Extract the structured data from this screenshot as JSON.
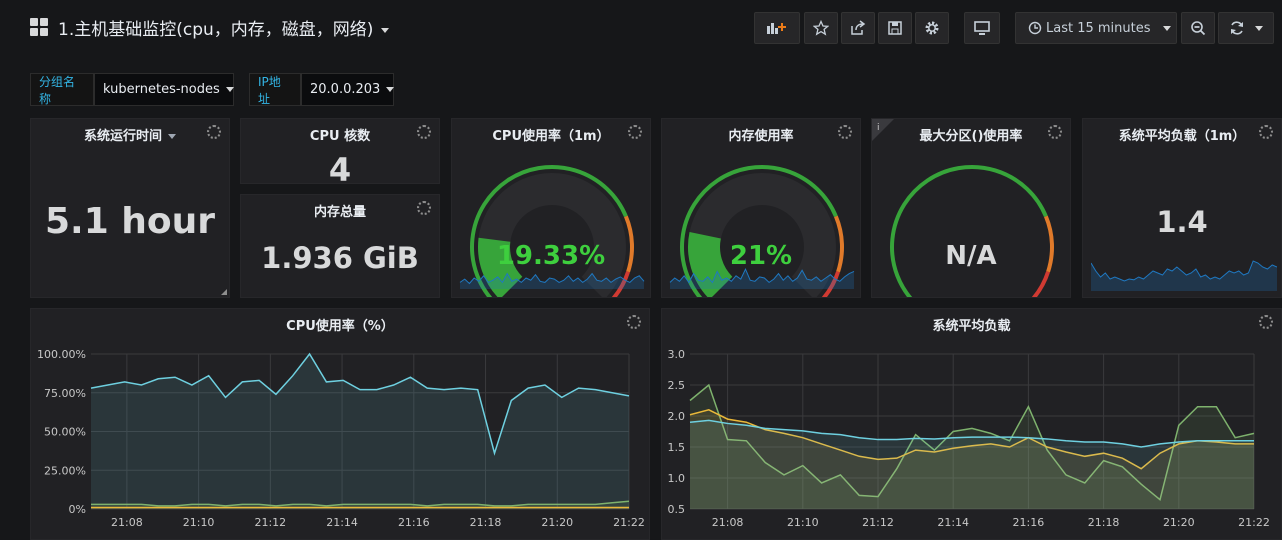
{
  "dashboard": {
    "title": "1.主机基础监控(cpu，内存，磁盘，网络)",
    "time_range": "Last 15 minutes"
  },
  "variables": [
    {
      "label": "分组名称",
      "value": "kubernetes-nodes"
    },
    {
      "label": "IP地址",
      "value": "20.0.0.203"
    }
  ],
  "panels": {
    "uptime": {
      "title": "系统运行时间",
      "value": "5.1 hour"
    },
    "cpu_cores": {
      "title": "CPU 核数",
      "value": "4"
    },
    "mem_total": {
      "title": "内存总量",
      "value": "1.936 GiB"
    },
    "cpu_usage": {
      "title": "CPU使用率（1m）",
      "value": "19.33%",
      "fraction": 0.1933
    },
    "mem_usage": {
      "title": "内存使用率",
      "value": "21%",
      "fraction": 0.21
    },
    "disk_usage": {
      "title": "最大分区()使用率",
      "value": "N/A"
    },
    "load_1m": {
      "title": "系统平均负载（1m）",
      "value": "1.4"
    },
    "cpu_chart": {
      "title": "CPU使用率（%）"
    },
    "load_chart": {
      "title": "系统平均负载"
    }
  },
  "colors": {
    "gauge_green": "#37a43a",
    "gauge_orange": "#e07a2a",
    "gauge_red": "#d03a32",
    "stat_value_green": "#3ecf3e",
    "series_blue": "#6ed0e0",
    "series_yellow": "#eab839",
    "series_green": "#7eb26d",
    "sparkline": "#1f78c1"
  },
  "chart_data": [
    {
      "type": "area",
      "title": "CPU使用率（%）",
      "x_ticks": [
        "21:08",
        "21:10",
        "21:12",
        "21:14",
        "21:16",
        "21:18",
        "21:20",
        "21:22"
      ],
      "y_ticks": [
        "0%",
        "25.00%",
        "50.00%",
        "75.00%",
        "100.00%"
      ],
      "ylim": [
        0,
        100
      ],
      "xlim": [
        "21:07",
        "21:22"
      ],
      "series": [
        {
          "color": "#6ed0e0",
          "values": [
            78,
            80,
            82,
            80,
            84,
            85,
            80,
            86,
            72,
            82,
            83,
            74,
            86,
            100,
            82,
            83,
            77,
            77,
            80,
            85,
            78,
            77,
            78,
            77,
            36,
            70,
            78,
            80,
            72,
            78,
            77,
            75,
            73
          ]
        },
        {
          "color": "#7eb26d",
          "values": [
            3,
            3,
            3,
            3,
            2,
            2,
            3,
            3,
            2,
            3,
            3,
            2,
            3,
            3,
            2,
            3,
            3,
            3,
            3,
            3,
            2,
            3,
            3,
            3,
            2,
            2,
            3,
            3,
            3,
            3,
            3,
            4,
            5
          ]
        },
        {
          "color": "#eab839",
          "values": [
            1,
            1,
            1,
            1,
            1,
            1,
            1,
            1,
            1,
            1,
            1,
            1,
            1,
            1,
            1,
            1,
            1,
            1,
            1,
            1,
            1,
            1,
            1,
            1,
            1,
            1,
            1,
            1,
            1,
            1,
            1,
            1,
            1
          ]
        }
      ]
    },
    {
      "type": "area",
      "title": "系统平均负载",
      "x_ticks": [
        "21:08",
        "21:10",
        "21:12",
        "21:14",
        "21:16",
        "21:18",
        "21:20",
        "21:22"
      ],
      "y_ticks": [
        "0.5",
        "1.0",
        "1.5",
        "2.0",
        "2.5",
        "3.0"
      ],
      "ylim": [
        0.5,
        3.0
      ],
      "xlim": [
        "21:07",
        "21:22"
      ],
      "series": [
        {
          "color": "#7eb26d",
          "values": [
            2.25,
            2.5,
            1.62,
            1.6,
            1.25,
            1.05,
            1.2,
            0.92,
            1.05,
            0.72,
            0.7,
            1.15,
            1.7,
            1.45,
            1.75,
            1.8,
            1.72,
            1.6,
            2.15,
            1.45,
            1.05,
            0.92,
            1.28,
            1.18,
            0.9,
            0.65,
            1.85,
            2.15,
            2.15,
            1.65,
            1.72
          ]
        },
        {
          "color": "#eab839",
          "values": [
            2.02,
            2.1,
            1.95,
            1.9,
            1.78,
            1.72,
            1.65,
            1.55,
            1.45,
            1.35,
            1.3,
            1.32,
            1.45,
            1.42,
            1.48,
            1.52,
            1.55,
            1.5,
            1.65,
            1.5,
            1.42,
            1.35,
            1.4,
            1.32,
            1.15,
            1.4,
            1.55,
            1.6,
            1.58,
            1.55,
            1.55
          ]
        },
        {
          "color": "#6ed0e0",
          "values": [
            1.9,
            1.93,
            1.88,
            1.85,
            1.8,
            1.78,
            1.76,
            1.72,
            1.7,
            1.65,
            1.62,
            1.62,
            1.64,
            1.63,
            1.65,
            1.66,
            1.66,
            1.66,
            1.65,
            1.63,
            1.6,
            1.58,
            1.58,
            1.55,
            1.5,
            1.55,
            1.58,
            1.6,
            1.6,
            1.6,
            1.6
          ]
        }
      ]
    },
    {
      "type": "line",
      "title": "CPU使用率（1m）",
      "values": [
        0.3,
        0.45,
        0.25,
        0.5,
        0.35,
        0.6,
        0.3,
        0.4,
        0.55,
        0.3,
        0.7,
        0.35,
        0.45,
        0.3,
        0.5,
        0.4,
        0.65,
        0.35,
        0.3,
        0.5,
        0.45,
        0.3,
        0.4,
        0.6,
        0.35,
        0.5,
        0.3,
        0.45,
        0.7,
        0.4,
        0.35,
        0.5,
        0.3,
        0.45,
        0.55,
        0.4,
        0.3,
        0.5,
        0.6,
        0.35
      ]
    },
    {
      "type": "line",
      "title": "内存使用率",
      "values": [
        0.3,
        0.5,
        0.35,
        0.6,
        0.3,
        0.7,
        0.4,
        0.35,
        0.55,
        0.3,
        0.8,
        0.4,
        0.5,
        0.35,
        0.6,
        0.45,
        0.9,
        0.4,
        0.35,
        0.55,
        0.5,
        0.3,
        0.45,
        0.7,
        0.4,
        0.6,
        0.35,
        0.5,
        0.85,
        0.45,
        0.4,
        0.55,
        0.35,
        0.5,
        0.65,
        0.45,
        0.35,
        0.55,
        0.7,
        0.8
      ]
    },
    {
      "type": "area",
      "title": "系统平均负载（1m）",
      "values": [
        0.7,
        0.5,
        0.35,
        0.45,
        0.3,
        0.35,
        0.3,
        0.25,
        0.3,
        0.28,
        0.35,
        0.3,
        0.4,
        0.5,
        0.45,
        0.4,
        0.55,
        0.5,
        0.6,
        0.5,
        0.4,
        0.45,
        0.55,
        0.35,
        0.4,
        0.3,
        0.35,
        0.3,
        0.4,
        0.5,
        0.45,
        0.5,
        0.4,
        0.45,
        0.75,
        0.7,
        0.6,
        0.55,
        0.65,
        0.6
      ]
    }
  ]
}
